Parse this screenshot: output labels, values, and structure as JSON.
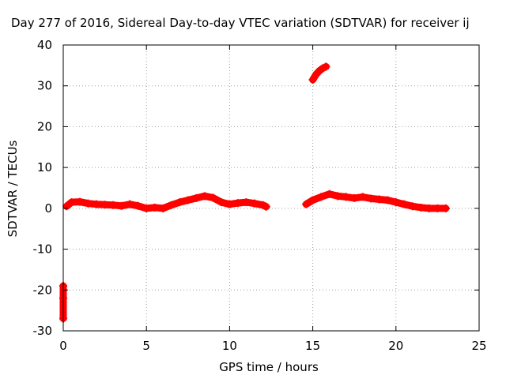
{
  "chart_data": {
    "type": "scatter",
    "title": "Day 277 of 2016, Sidereal Day-to-day VTEC variation (SDTVAR) for receiver ij",
    "xlabel": "GPS time / hours",
    "ylabel": "SDTVAR / TECUs",
    "xlim": [
      0,
      25
    ],
    "ylim": [
      -30,
      40
    ],
    "xticks": [
      "0",
      "5",
      "10",
      "15",
      "20",
      "25"
    ],
    "yticks": [
      "-30",
      "-20",
      "-10",
      "0",
      "10",
      "20",
      "30",
      "40"
    ],
    "grid": true,
    "series": [
      {
        "color": "#ff0000",
        "marker": "plus",
        "segments": [
          {
            "x": [
              0.0,
              0.0,
              0.0
            ],
            "y": [
              -19.0,
              -22.0,
              -27.0
            ]
          },
          {
            "x": [
              0.2,
              0.5,
              1.0,
              1.5,
              2.0,
              2.5,
              3.0,
              3.5,
              4.0,
              4.5,
              5.0,
              5.5,
              6.0,
              6.5,
              7.0,
              7.5,
              8.0,
              8.5,
              9.0,
              9.5,
              10.0,
              10.5,
              11.0,
              11.5,
              12.0,
              12.2
            ],
            "y": [
              0.5,
              1.5,
              1.6,
              1.2,
              1.0,
              0.9,
              0.8,
              0.6,
              1.0,
              0.6,
              0.0,
              0.2,
              0.0,
              0.8,
              1.5,
              2.0,
              2.5,
              3.0,
              2.6,
              1.5,
              1.0,
              1.3,
              1.5,
              1.2,
              0.8,
              0.4
            ]
          },
          {
            "x": [
              14.6,
              15.0,
              15.5,
              16.0,
              16.5,
              17.0,
              17.5,
              18.0,
              18.5,
              19.0,
              19.5,
              20.0,
              20.5,
              21.0,
              21.5,
              22.0,
              22.5,
              23.0
            ],
            "y": [
              1.0,
              2.0,
              2.8,
              3.5,
              3.0,
              2.8,
              2.5,
              2.8,
              2.4,
              2.2,
              2.0,
              1.5,
              1.0,
              0.5,
              0.2,
              0.0,
              0.0,
              0.0
            ]
          },
          {
            "x": [
              15.0,
              15.2,
              15.4,
              15.6,
              15.8
            ],
            "y": [
              31.5,
              32.8,
              33.7,
              34.3,
              34.7
            ]
          }
        ]
      }
    ]
  }
}
